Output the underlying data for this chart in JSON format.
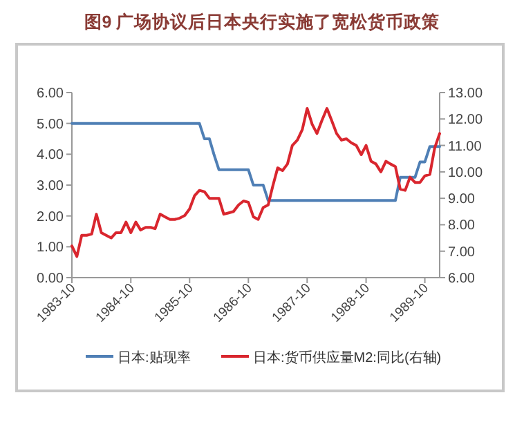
{
  "chart_data": {
    "type": "line",
    "title": "图9 广场协议后日本央行实施了宽松货币政策",
    "x": [
      "1983-10",
      "1983-11",
      "1983-12",
      "1984-01",
      "1984-02",
      "1984-03",
      "1984-04",
      "1984-05",
      "1984-06",
      "1984-07",
      "1984-08",
      "1984-09",
      "1984-10",
      "1984-11",
      "1984-12",
      "1985-01",
      "1985-02",
      "1985-03",
      "1985-04",
      "1985-05",
      "1985-06",
      "1985-07",
      "1985-08",
      "1985-09",
      "1985-10",
      "1985-11",
      "1985-12",
      "1986-01",
      "1986-02",
      "1986-03",
      "1986-04",
      "1986-05",
      "1986-06",
      "1986-07",
      "1986-08",
      "1986-09",
      "1986-10",
      "1986-11",
      "1986-12",
      "1987-01",
      "1987-02",
      "1987-03",
      "1987-04",
      "1987-05",
      "1987-06",
      "1987-07",
      "1987-08",
      "1987-09",
      "1987-10",
      "1987-11",
      "1987-12",
      "1988-01",
      "1988-02",
      "1988-03",
      "1988-04",
      "1988-05",
      "1988-06",
      "1988-07",
      "1988-08",
      "1988-09",
      "1988-10",
      "1988-11",
      "1988-12",
      "1989-01",
      "1989-02",
      "1989-03",
      "1989-04",
      "1989-05",
      "1989-06",
      "1989-07",
      "1989-08",
      "1989-09",
      "1989-10",
      "1989-11",
      "1989-12",
      "1990-01"
    ],
    "series": [
      {
        "name": "日本:贴现率",
        "color": "#4f7fb5",
        "values": [
          5,
          5,
          5,
          5,
          5,
          5,
          5,
          5,
          5,
          5,
          5,
          5,
          5,
          5,
          5,
          5,
          5,
          5,
          5,
          5,
          5,
          5,
          5,
          5,
          5,
          5,
          5,
          4.5,
          4.5,
          4,
          3.5,
          3.5,
          3.5,
          3.5,
          3.5,
          3.5,
          3.5,
          3,
          3,
          3,
          2.5,
          2.5,
          2.5,
          2.5,
          2.5,
          2.5,
          2.5,
          2.5,
          2.5,
          2.5,
          2.5,
          2.5,
          2.5,
          2.5,
          2.5,
          2.5,
          2.5,
          2.5,
          2.5,
          2.5,
          2.5,
          2.5,
          2.5,
          2.5,
          2.5,
          2.5,
          2.5,
          3.25,
          3.25,
          3.25,
          3.25,
          3.75,
          3.75,
          4.25,
          4.25,
          4.25
        ]
      },
      {
        "name": "日本:货币供应量M2:同比(右轴)",
        "color": "#d9262e",
        "axis": "y2",
        "values": [
          7.2,
          6.8,
          7.6,
          7.6,
          7.65,
          8.4,
          7.7,
          7.6,
          7.5,
          7.7,
          7.7,
          8.1,
          7.7,
          8.1,
          7.8,
          7.9,
          7.9,
          7.85,
          8.4,
          8.3,
          8.2,
          8.2,
          8.25,
          8.35,
          8.6,
          9.1,
          9.3,
          9.25,
          9.0,
          9.0,
          9.0,
          8.4,
          8.45,
          8.5,
          8.75,
          8.9,
          8.85,
          8.3,
          8.2,
          8.65,
          8.75,
          9.45,
          10.15,
          10.05,
          10.3,
          11.0,
          11.2,
          11.6,
          12.4,
          11.8,
          11.45,
          11.95,
          12.4,
          11.95,
          11.45,
          11.2,
          11.25,
          11.1,
          11.0,
          10.65,
          11.0,
          10.4,
          10.3,
          10.0,
          10.4,
          10.3,
          10.2,
          9.35,
          9.3,
          9.8,
          9.6,
          9.6,
          9.85,
          9.9,
          10.9,
          11.45
        ]
      }
    ],
    "xlim": [
      "1983-10",
      "1990-01"
    ],
    "xticks": [
      "1983-10",
      "1984-10",
      "1985-10",
      "1986-10",
      "1987-10",
      "1988-10",
      "1989-10"
    ],
    "ylim": [
      0,
      6
    ],
    "yticks": [
      {
        "value": 0,
        "label": "0.00"
      },
      {
        "value": 1,
        "label": "1.00"
      },
      {
        "value": 2,
        "label": "2.00"
      },
      {
        "value": 3,
        "label": "3.00"
      },
      {
        "value": 4,
        "label": "4.00"
      },
      {
        "value": 5,
        "label": "5.00"
      },
      {
        "value": 6,
        "label": "6.00"
      }
    ],
    "y2lim": [
      6,
      13
    ],
    "y2ticks": [
      {
        "value": 6,
        "label": "6.00"
      },
      {
        "value": 7,
        "label": "7.00"
      },
      {
        "value": 8,
        "label": "8.00"
      },
      {
        "value": 9,
        "label": "9.00"
      },
      {
        "value": 10,
        "label": "10.00"
      },
      {
        "value": 11,
        "label": "11.00"
      },
      {
        "value": 12,
        "label": "12.00"
      },
      {
        "value": 13,
        "label": "13.00"
      }
    ],
    "grid": false,
    "legend": "bottom",
    "marker": "none",
    "line_style": "solid"
  }
}
